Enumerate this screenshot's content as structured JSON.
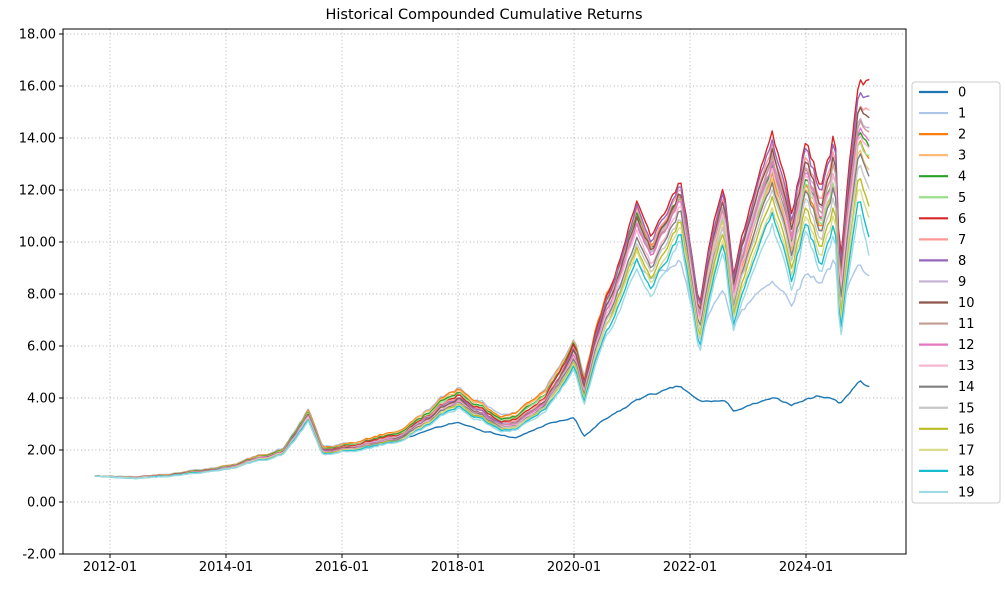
{
  "figure": {
    "background_color": "#ffffff",
    "frame_color": "#000000",
    "grid_color": "#b0b0b0",
    "grid_style": "dotted"
  },
  "axes": {
    "x_tick_labels": [
      "2012-01",
      "2014-01",
      "2016-01",
      "2018-01",
      "2020-01",
      "2022-01",
      "2024-01"
    ],
    "y_tick_labels": [
      "-2.00",
      "0.00",
      "2.00",
      "4.00",
      "6.00",
      "8.00",
      "10.00",
      "12.00",
      "14.00",
      "16.00",
      "18.00"
    ],
    "y_min": -2,
    "y_max": 18
  },
  "legend": {
    "position": "right outside",
    "labels": [
      "0",
      "1",
      "2",
      "3",
      "4",
      "5",
      "6",
      "7",
      "8",
      "9",
      "10",
      "11",
      "12",
      "13",
      "14",
      "15",
      "16",
      "17",
      "18",
      "19"
    ]
  },
  "chart_data": {
    "type": "line",
    "title": "Historical Compounded Cumulative Returns",
    "xlabel": "",
    "ylabel": "",
    "ylim": [
      -2,
      18
    ],
    "xlim": [
      "2011-03",
      "2025-08"
    ],
    "grid": "dotted both axes",
    "legend_position": "right outside",
    "x": [
      "2011-10",
      "2012-06",
      "2013-01",
      "2014-01",
      "2015-01",
      "2015-06",
      "2015-09",
      "2016-02",
      "2017-01",
      "2018-01",
      "2018-10",
      "2019-01",
      "2019-07",
      "2020-01",
      "2020-03",
      "2020-07",
      "2020-12",
      "2021-02",
      "2021-05",
      "2021-11",
      "2022-03",
      "2022-08",
      "2022-10",
      "2023-06",
      "2023-10",
      "2024-01",
      "2024-04",
      "2024-07",
      "2024-08",
      "2024-12",
      "2025-02"
    ],
    "series": [
      {
        "name": "0",
        "color": "#1f77b4",
        "values": [
          1.0,
          0.92,
          1.06,
          1.34,
          1.85,
          3.1,
          1.86,
          1.95,
          2.4,
          3.05,
          2.6,
          2.45,
          2.95,
          3.25,
          2.5,
          3.1,
          3.65,
          3.95,
          4.15,
          4.4,
          3.85,
          3.9,
          3.5,
          3.95,
          3.75,
          3.95,
          4.1,
          3.95,
          3.8,
          4.65,
          4.45
        ]
      },
      {
        "name": "1",
        "color": "#aec7e8",
        "values": [
          1.0,
          0.96,
          1.1,
          1.4,
          2.08,
          3.52,
          2.1,
          2.2,
          2.72,
          4.45,
          3.38,
          3.42,
          4.4,
          6.35,
          4.78,
          7.25,
          8.7,
          9.4,
          8.3,
          9.1,
          6.35,
          8.4,
          6.85,
          8.7,
          7.85,
          8.95,
          8.55,
          9.35,
          7.05,
          9.55,
          8.85
        ]
      },
      {
        "name": "2",
        "color": "#ff7f0e",
        "values": [
          1.0,
          0.96,
          1.08,
          1.38,
          2.05,
          3.5,
          2.07,
          2.19,
          2.75,
          4.4,
          3.31,
          3.39,
          4.37,
          6.37,
          4.67,
          7.5,
          9.81,
          11.5,
          9.53,
          11.54,
          7.11,
          11.31,
          7.9,
          12.86,
          10.03,
          12.45,
          10.75,
          12.58,
          7.43,
          14.43,
          13.3
        ]
      },
      {
        "name": "3",
        "color": "#ffbb78",
        "values": [
          1.0,
          0.95,
          1.08,
          1.37,
          2.03,
          3.46,
          2.05,
          2.16,
          2.71,
          4.34,
          3.27,
          3.34,
          4.31,
          6.27,
          4.59,
          7.37,
          9.64,
          11.29,
          9.36,
          11.4,
          6.99,
          11.18,
          7.78,
          12.66,
          9.87,
          12.27,
          10.57,
          12.36,
          7.27,
          14.15,
          12.93
        ]
      },
      {
        "name": "4",
        "color": "#2ca02c",
        "values": [
          1.0,
          0.95,
          1.07,
          1.36,
          2.01,
          3.42,
          2.02,
          2.13,
          2.67,
          4.26,
          3.21,
          3.27,
          4.22,
          6.21,
          4.56,
          7.37,
          9.69,
          11.4,
          9.48,
          11.59,
          7.21,
          11.52,
          8.08,
          13.16,
          10.29,
          12.75,
          11.04,
          12.91,
          7.68,
          14.87,
          13.88
        ]
      },
      {
        "name": "5",
        "color": "#98df8a",
        "values": [
          1.0,
          0.94,
          1.06,
          1.35,
          1.99,
          3.38,
          2.0,
          2.11,
          2.63,
          4.19,
          3.16,
          3.22,
          4.15,
          6.11,
          4.47,
          7.25,
          9.52,
          11.19,
          9.31,
          11.45,
          7.09,
          11.38,
          7.96,
          12.97,
          10.12,
          12.56,
          10.86,
          12.7,
          7.52,
          14.58,
          13.51
        ]
      },
      {
        "name": "6",
        "color": "#d62728",
        "values": [
          1.0,
          0.94,
          1.06,
          1.33,
          1.97,
          3.35,
          1.98,
          2.08,
          2.6,
          4.13,
          3.11,
          3.17,
          4.09,
          6.18,
          4.56,
          7.47,
          9.97,
          11.84,
          9.92,
          12.18,
          7.82,
          12.43,
          8.89,
          14.48,
          11.39,
          14.02,
          12.3,
          14.38,
          8.76,
          16.76,
          16.38
        ]
      },
      {
        "name": "7",
        "color": "#ff9896",
        "values": [
          1.0,
          0.93,
          1.05,
          1.32,
          1.96,
          3.31,
          1.96,
          2.06,
          2.56,
          4.07,
          3.07,
          3.12,
          4.02,
          6.05,
          4.45,
          7.29,
          9.69,
          11.47,
          9.6,
          11.87,
          7.54,
          12.07,
          8.57,
          13.96,
          10.96,
          13.52,
          11.81,
          13.81,
          8.34,
          16.02,
          15.4
        ]
      },
      {
        "name": "8",
        "color": "#9467bd",
        "values": [
          1.0,
          0.93,
          1.05,
          1.32,
          1.94,
          3.29,
          1.94,
          2.04,
          2.54,
          4.03,
          3.03,
          3.08,
          3.98,
          6.02,
          4.43,
          7.28,
          9.72,
          11.52,
          9.66,
          11.97,
          7.64,
          12.25,
          8.73,
          14.21,
          11.17,
          13.76,
          12.05,
          14.08,
          8.54,
          16.38,
          15.87
        ]
      },
      {
        "name": "9",
        "color": "#c5b0d5",
        "values": [
          1.0,
          0.93,
          1.04,
          1.31,
          1.93,
          3.27,
          1.93,
          2.03,
          2.52,
          3.99,
          3.0,
          3.05,
          3.93,
          5.9,
          4.32,
          7.09,
          9.41,
          11.11,
          9.3,
          11.59,
          7.29,
          11.78,
          8.31,
          13.54,
          10.6,
          13.11,
          11.4,
          13.33,
          7.99,
          15.4,
          14.59
        ]
      },
      {
        "name": "10",
        "color": "#8c564b",
        "values": [
          1.0,
          0.92,
          1.04,
          1.31,
          1.93,
          3.25,
          1.92,
          2.02,
          2.5,
          3.97,
          2.99,
          3.03,
          3.91,
          5.94,
          4.33,
          7.12,
          9.47,
          11.21,
          9.39,
          11.71,
          7.42,
          11.96,
          8.48,
          13.8,
          10.82,
          13.37,
          11.65,
          13.63,
          8.21,
          15.79,
          15.1
        ]
      },
      {
        "name": "11",
        "color": "#c49c94",
        "values": [
          1.0,
          0.92,
          1.04,
          1.3,
          1.91,
          3.23,
          1.91,
          2.0,
          2.48,
          3.93,
          2.96,
          3.0,
          3.87,
          5.81,
          4.24,
          6.97,
          9.25,
          10.92,
          9.15,
          11.46,
          7.19,
          11.67,
          8.21,
          13.38,
          10.47,
          12.95,
          11.25,
          13.15,
          7.85,
          15.17,
          14.28
        ]
      },
      {
        "name": "12",
        "color": "#e377c2",
        "values": [
          1.0,
          0.92,
          1.04,
          1.3,
          1.91,
          3.22,
          1.9,
          1.99,
          2.47,
          3.91,
          2.94,
          2.98,
          3.85,
          5.77,
          4.21,
          6.93,
          9.18,
          10.83,
          9.07,
          11.39,
          7.13,
          11.59,
          8.15,
          13.27,
          10.38,
          12.85,
          11.14,
          13.03,
          7.77,
          15.02,
          14.08
        ]
      },
      {
        "name": "13",
        "color": "#f7b6d2",
        "values": [
          1.0,
          0.92,
          1.03,
          1.29,
          1.9,
          3.2,
          1.89,
          1.98,
          2.45,
          3.87,
          2.91,
          2.95,
          3.8,
          5.7,
          4.15,
          6.83,
          9.05,
          10.66,
          8.93,
          11.26,
          7.02,
          11.46,
          8.03,
          13.07,
          10.21,
          12.66,
          10.96,
          12.82,
          7.61,
          14.74,
          13.71
        ]
      },
      {
        "name": "14",
        "color": "#7f7f7f",
        "values": [
          1.0,
          0.92,
          1.03,
          1.29,
          1.89,
          3.19,
          1.88,
          1.97,
          2.44,
          3.85,
          2.9,
          2.93,
          3.78,
          5.62,
          4.07,
          6.69,
          8.82,
          10.36,
          8.66,
          10.96,
          6.74,
          11.09,
          7.7,
          12.54,
          9.77,
          12.15,
          10.45,
          12.22,
          7.17,
          13.97,
          12.7
        ]
      },
      {
        "name": "15",
        "color": "#c7c7c7",
        "values": [
          1.0,
          0.91,
          1.03,
          1.28,
          1.88,
          3.16,
          1.87,
          1.95,
          2.41,
          3.8,
          2.86,
          2.9,
          3.74,
          5.54,
          4.0,
          6.59,
          8.66,
          10.15,
          8.48,
          10.79,
          6.59,
          10.9,
          7.54,
          12.27,
          9.54,
          11.89,
          10.19,
          11.92,
          6.95,
          13.59,
          12.19
        ]
      },
      {
        "name": "16",
        "color": "#bcbd22",
        "values": [
          1.0,
          0.91,
          1.02,
          1.27,
          1.87,
          3.15,
          1.86,
          1.95,
          2.4,
          3.78,
          2.85,
          2.88,
          3.71,
          5.48,
          3.95,
          6.48,
          8.5,
          9.93,
          8.29,
          10.59,
          6.41,
          10.66,
          7.32,
          11.92,
          9.24,
          11.54,
          9.85,
          11.53,
          6.66,
          13.07,
          11.51
        ]
      },
      {
        "name": "17",
        "color": "#dbdb8d",
        "values": [
          1.0,
          0.91,
          1.02,
          1.27,
          1.86,
          3.13,
          1.85,
          1.93,
          2.38,
          3.74,
          2.82,
          2.85,
          3.67,
          5.4,
          3.88,
          6.38,
          8.34,
          9.73,
          8.12,
          10.43,
          6.26,
          10.47,
          7.16,
          11.65,
          9.02,
          11.29,
          9.6,
          11.23,
          6.44,
          12.69,
          11.01
        ]
      },
      {
        "name": "18",
        "color": "#17becf",
        "values": [
          1.0,
          0.9,
          1.02,
          1.26,
          1.85,
          3.1,
          1.83,
          1.91,
          2.35,
          3.7,
          2.79,
          2.81,
          3.63,
          5.31,
          3.8,
          6.25,
          8.14,
          9.48,
          7.9,
          10.21,
          6.07,
          10.23,
          6.94,
          11.29,
          8.72,
          10.94,
          9.26,
          10.84,
          6.15,
          12.18,
          10.33
        ]
      },
      {
        "name": "19",
        "color": "#9edae5",
        "values": [
          1.0,
          0.9,
          1.01,
          1.25,
          1.83,
          3.07,
          1.81,
          1.89,
          2.32,
          3.64,
          2.74,
          2.76,
          3.56,
          5.19,
          3.7,
          6.09,
          7.91,
          9.18,
          7.65,
          9.97,
          5.86,
          9.97,
          6.71,
          10.92,
          8.41,
          10.58,
          8.9,
          10.42,
          5.84,
          11.64,
          9.62
        ]
      }
    ]
  }
}
